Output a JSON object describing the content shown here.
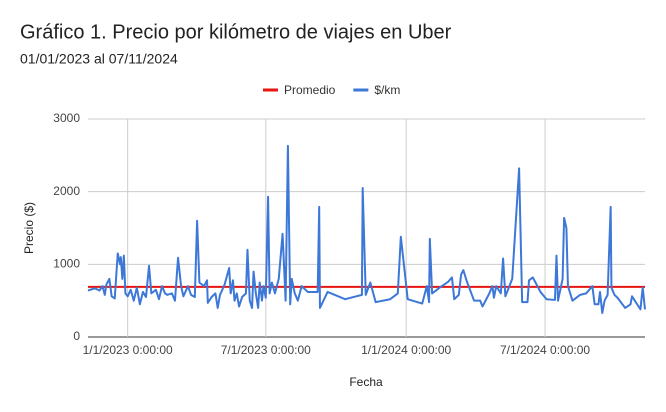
{
  "chart_data": {
    "type": "line",
    "title": "Gráfico 1. Precio por kilómetro de viajes en Uber",
    "subtitle": "01/01/2023 al 07/11/2024",
    "x_label": "Fecha",
    "y_label": "Precio ($)",
    "xlim": [
      "2022-11-10",
      "2024-11-09"
    ],
    "xticks": [
      {
        "value": "2023-01-01",
        "label": "1/1/2023 0:00:00"
      },
      {
        "value": "2023-07-01",
        "label": "7/1/2023 0:00:00"
      },
      {
        "value": "2024-01-01",
        "label": "1/1/2024 0:00:00"
      },
      {
        "value": "2024-07-01",
        "label": "7/1/2024 0:00:00"
      }
    ],
    "ylim": [
      0,
      3000
    ],
    "yticks": [
      0,
      1000,
      2000,
      3000
    ],
    "grid": true,
    "legend": "top",
    "reference_line": {
      "name": "Promedio",
      "color": "#e8140f",
      "value": 690
    },
    "x": [
      "2022-11-10",
      "2022-11-19",
      "2022-11-25",
      "2022-11-29",
      "2022-12-02",
      "2022-12-04",
      "2022-12-08",
      "2022-12-11",
      "2022-12-15",
      "2022-12-19",
      "2022-12-22",
      "2022-12-23",
      "2022-12-25",
      "2022-12-27",
      "2022-12-29",
      "2023-01-01",
      "2023-01-05",
      "2023-01-09",
      "2023-01-13",
      "2023-01-17",
      "2023-01-21",
      "2023-01-25",
      "2023-01-29",
      "2023-02-01",
      "2023-02-07",
      "2023-02-11",
      "2023-02-15",
      "2023-02-19",
      "2023-02-22",
      "2023-02-28",
      "2023-03-04",
      "2023-03-08",
      "2023-03-12",
      "2023-03-15",
      "2023-03-21",
      "2023-03-25",
      "2023-03-30",
      "2023-04-02",
      "2023-04-05",
      "2023-04-11",
      "2023-04-15",
      "2023-04-16",
      "2023-04-21",
      "2023-04-26",
      "2023-04-29",
      "2023-05-02",
      "2023-05-08",
      "2023-05-14",
      "2023-05-16",
      "2023-05-19",
      "2023-05-21",
      "2023-05-24",
      "2023-05-27",
      "2023-05-31",
      "2023-06-05",
      "2023-06-07",
      "2023-06-10",
      "2023-06-13",
      "2023-06-15",
      "2023-06-18",
      "2023-06-21",
      "2023-06-23",
      "2023-06-26",
      "2023-06-28",
      "2023-07-01",
      "2023-07-04",
      "2023-07-06",
      "2023-07-09",
      "2023-07-13",
      "2023-07-18",
      "2023-07-23",
      "2023-07-27",
      "2023-07-30",
      "2023-08-02",
      "2023-08-04",
      "2023-08-08",
      "2023-08-12",
      "2023-08-17",
      "2023-08-25",
      "2023-09-07",
      "2023-09-09",
      "2023-09-10",
      "2023-09-20",
      "2023-10-13",
      "2023-11-04",
      "2023-11-05",
      "2023-11-09",
      "2023-11-15",
      "2023-11-22",
      "2023-12-11",
      "2023-12-21",
      "2023-12-25",
      "2024-01-03",
      "2024-01-22",
      "2024-01-28",
      "2024-01-31",
      "2024-02-01",
      "2024-02-04",
      "2024-02-14",
      "2024-02-25",
      "2024-03-01",
      "2024-03-04",
      "2024-03-10",
      "2024-03-13",
      "2024-03-16",
      "2024-03-20",
      "2024-03-30",
      "2024-04-07",
      "2024-04-10",
      "2024-04-19",
      "2024-04-23",
      "2024-04-25",
      "2024-04-28",
      "2024-05-04",
      "2024-05-07",
      "2024-05-10",
      "2024-05-19",
      "2024-05-28",
      "2024-06-01",
      "2024-06-08",
      "2024-06-10",
      "2024-06-15",
      "2024-06-25",
      "2024-07-03",
      "2024-07-14",
      "2024-07-16",
      "2024-07-18",
      "2024-07-24",
      "2024-07-26",
      "2024-07-29",
      "2024-07-31",
      "2024-08-06",
      "2024-08-16",
      "2024-08-24",
      "2024-09-01",
      "2024-09-04",
      "2024-09-09",
      "2024-09-11",
      "2024-09-14",
      "2024-09-17",
      "2024-09-21",
      "2024-09-25",
      "2024-09-26",
      "2024-09-30",
      "2024-10-04",
      "2024-10-14",
      "2024-10-21",
      "2024-10-23",
      "2024-11-03",
      "2024-11-06",
      "2024-11-09"
    ],
    "series": [
      {
        "name": "$/km",
        "color": "#3d78d8",
        "values": [
          640,
          670,
          640,
          700,
          580,
          720,
          800,
          560,
          530,
          1150,
          1000,
          1100,
          800,
          1120,
          600,
          560,
          650,
          500,
          680,
          450,
          620,
          550,
          980,
          600,
          650,
          520,
          700,
          600,
          580,
          600,
          500,
          1090,
          700,
          560,
          700,
          580,
          550,
          1600,
          750,
          700,
          780,
          470,
          550,
          600,
          400,
          580,
          720,
          950,
          600,
          780,
          500,
          600,
          420,
          550,
          600,
          1200,
          500,
          400,
          900,
          600,
          400,
          750,
          500,
          700,
          540,
          1930,
          600,
          750,
          600,
          800,
          1420,
          500,
          2630,
          450,
          800,
          600,
          500,
          700,
          620,
          620,
          1790,
          400,
          620,
          520,
          580,
          2050,
          580,
          750,
          480,
          520,
          600,
          1380,
          520,
          460,
          700,
          480,
          1350,
          600,
          680,
          760,
          820,
          520,
          580,
          860,
          920,
          780,
          500,
          500,
          420,
          600,
          700,
          540,
          700,
          600,
          1080,
          560,
          800,
          2320,
          480,
          480,
          780,
          820,
          620,
          520,
          510,
          1120,
          500,
          800,
          1640,
          1500,
          700,
          500,
          580,
          600,
          700,
          450,
          450,
          620,
          330,
          500,
          580,
          1790,
          680,
          580,
          540,
          400,
          450,
          560,
          380,
          680,
          380
        ]
      }
    ]
  }
}
